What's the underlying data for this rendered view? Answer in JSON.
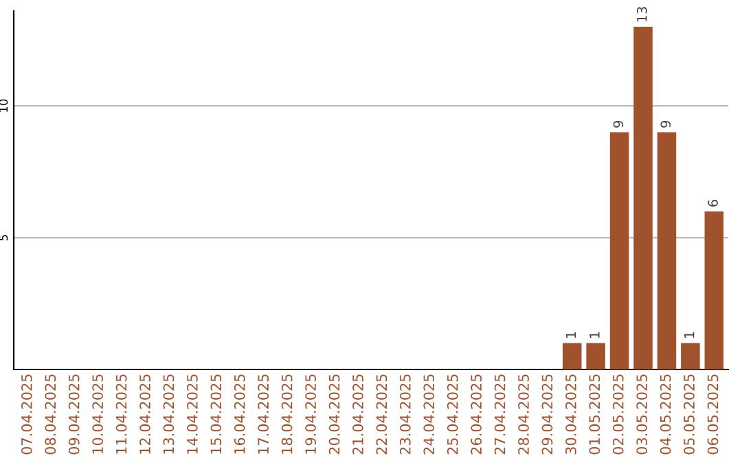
{
  "chart_data": {
    "type": "bar",
    "categories": [
      "07.04.2025",
      "08.04.2025",
      "09.04.2025",
      "10.04.2025",
      "11.04.2025",
      "12.04.2025",
      "13.04.2025",
      "14.04.2025",
      "15.04.2025",
      "16.04.2025",
      "17.04.2025",
      "18.04.2025",
      "19.04.2025",
      "20.04.2025",
      "21.04.2025",
      "22.04.2025",
      "23.04.2025",
      "24.04.2025",
      "25.04.2025",
      "26.04.2025",
      "27.04.2025",
      "28.04.2025",
      "29.04.2025",
      "30.04.2025",
      "01.05.2025",
      "02.05.2025",
      "03.05.2025",
      "04.05.2025",
      "05.05.2025",
      "06.05.2025"
    ],
    "values": [
      0,
      0,
      0,
      0,
      0,
      0,
      0,
      0,
      0,
      0,
      0,
      0,
      0,
      0,
      0,
      0,
      0,
      0,
      0,
      0,
      0,
      0,
      0,
      1,
      1,
      9,
      13,
      9,
      1,
      6
    ],
    "value_labels": [
      null,
      null,
      null,
      null,
      null,
      null,
      null,
      null,
      null,
      null,
      null,
      null,
      null,
      null,
      null,
      null,
      null,
      null,
      null,
      null,
      null,
      null,
      null,
      "1",
      "1",
      "9",
      "13",
      "9",
      "1",
      "6"
    ],
    "color": "#a0522d",
    "ylim": [
      0,
      13.6
    ],
    "yticks": [
      5,
      10
    ],
    "grid": "y"
  }
}
